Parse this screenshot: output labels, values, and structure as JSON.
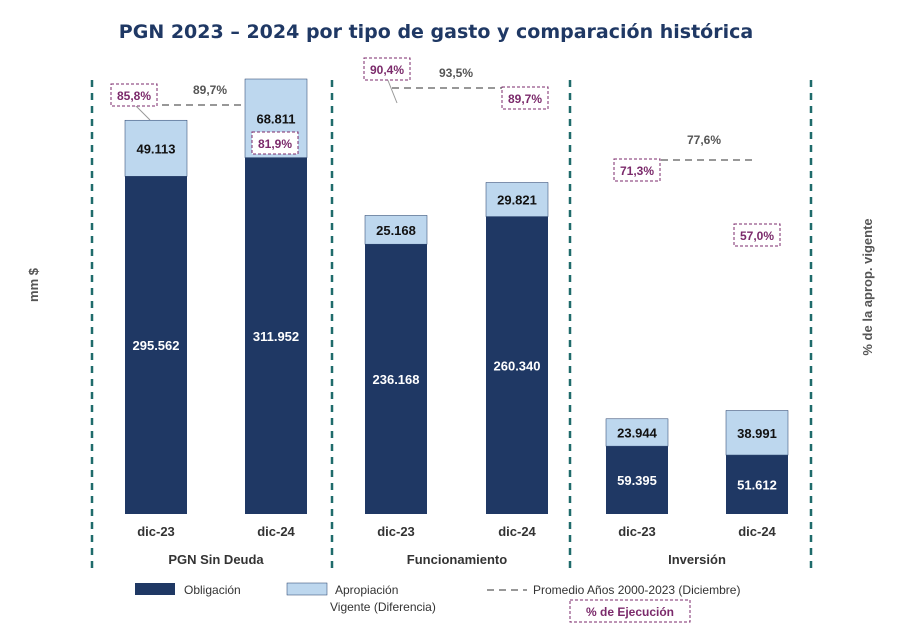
{
  "chart_data": {
    "type": "bar",
    "stacked": true,
    "title": "PGN 2023 – 2024 por tipo de gasto y comparación histórica",
    "ylabel": "mm $",
    "y2label": "% de la aprop. vigente",
    "groups": [
      {
        "name": "PGN Sin Deuda",
        "average_label": "89,7%",
        "bars": [
          {
            "category": "dic-23",
            "obligacion": 295562,
            "obligacion_label": "295.562",
            "diferencia": 49113,
            "diferencia_label": "49.113",
            "ejecucion_label": "85,8%"
          },
          {
            "category": "dic-24",
            "obligacion": 311952,
            "obligacion_label": "311.952",
            "diferencia": 68811,
            "diferencia_label": "68.811",
            "ejecucion_label": "81,9%"
          }
        ]
      },
      {
        "name": "Funcionamiento",
        "average_label": "93,5%",
        "bars": [
          {
            "category": "dic-23",
            "obligacion": 236168,
            "obligacion_label": "236.168",
            "diferencia": 25168,
            "diferencia_label": "25.168",
            "ejecucion_label": "90,4%"
          },
          {
            "category": "dic-24",
            "obligacion": 260340,
            "obligacion_label": "260.340",
            "diferencia": 29821,
            "diferencia_label": "29.821",
            "ejecucion_label": "89,7%"
          }
        ]
      },
      {
        "name": "Inversión",
        "average_label": "77,6%",
        "bars": [
          {
            "category": "dic-23",
            "obligacion": 59395,
            "obligacion_label": "59.395",
            "diferencia": 23944,
            "diferencia_label": "23.944",
            "ejecucion_label": "71,3%"
          },
          {
            "category": "dic-24",
            "obligacion": 51612,
            "obligacion_label": "51.612",
            "diferencia": 38991,
            "diferencia_label": "38.991",
            "ejecucion_label": "57,0%"
          }
        ]
      }
    ],
    "ylim": [
      0,
      400000
    ],
    "legend": {
      "obligacion": "Obligación",
      "apropiacion_line1": "Apropiación",
      "apropiacion_line2": "Vigente (Diferencia)",
      "promedio": "Promedio  Años 2000-2023 (Diciembre)",
      "ejecucion": "% de Ejecución"
    },
    "colors": {
      "obligacion": "#1f3864",
      "diferencia": "#bdd7ee",
      "ejecucion": "#7b2a6b",
      "separator": "#1f6b6b",
      "average": "#777777"
    }
  }
}
